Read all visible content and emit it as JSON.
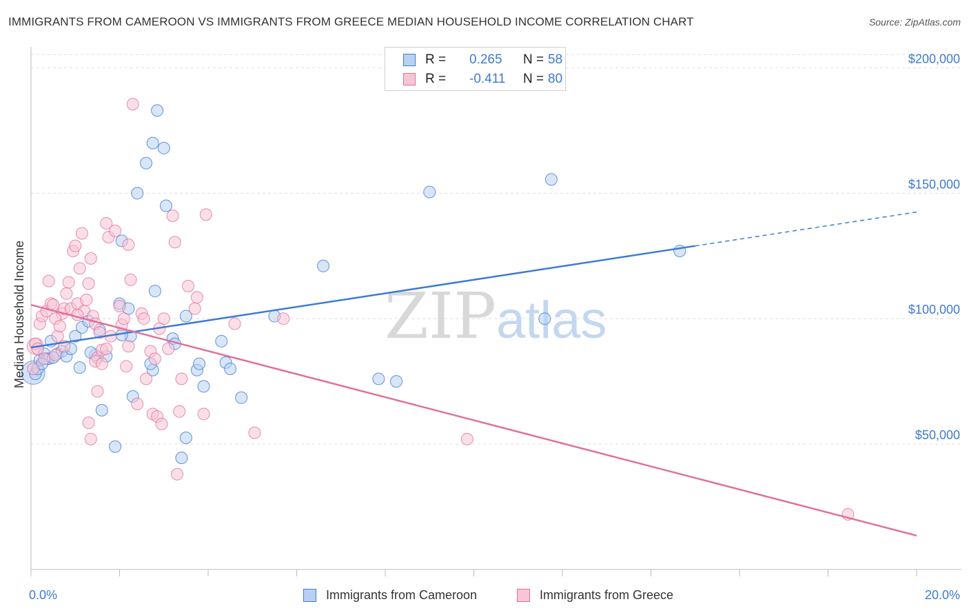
{
  "title": "IMMIGRANTS FROM CAMEROON VS IMMIGRANTS FROM GREECE MEDIAN HOUSEHOLD INCOME CORRELATION CHART",
  "source": "Source: ZipAtlas.com",
  "watermark": {
    "zip": "ZIP",
    "atlas": "atlas"
  },
  "legend": {
    "series1": {
      "r_label": "R =",
      "r_value": "0.265",
      "n_label": "N =",
      "n_value": "58"
    },
    "series2": {
      "r_label": "R =",
      "r_value": "-0.411",
      "n_label": "N =",
      "n_value": "80"
    }
  },
  "colors": {
    "cameroon": "#3d7bd1",
    "cameroon_fill": "#b8d1f3",
    "greece": "#e0709a",
    "greece_fill": "#f7c5d5",
    "tick_label": "#3d7bd1",
    "grid": "#dddddd"
  },
  "chart_data": {
    "type": "scatter",
    "title": "IMMIGRANTS FROM CAMEROON VS IMMIGRANTS FROM GREECE MEDIAN HOUSEHOLD INCOME CORRELATION CHART",
    "xlabel": "",
    "ylabel": "Median Household Income",
    "xlim": [
      0,
      20
    ],
    "ylim": [
      0,
      210000
    ],
    "x_tick_labels": [
      "0.0%",
      "20.0%"
    ],
    "y_ticks": [
      50000,
      100000,
      150000,
      200000
    ],
    "y_tick_labels": [
      "$50,000",
      "$100,000",
      "$150,000",
      "$200,000"
    ],
    "grid": true,
    "legend_position": "top-center",
    "series": [
      {
        "name": "Immigrants from Cameroon",
        "color": "#3d7bd1",
        "trend": {
          "x": [
            0,
            15
          ],
          "y": [
            88500,
            129000
          ],
          "dashed_to": [
            20,
            142500
          ]
        },
        "points": [
          [
            0.1,
            78000
          ],
          [
            0.15,
            80000
          ],
          [
            0.2,
            83500
          ],
          [
            0.3,
            86000
          ],
          [
            0.35,
            84000
          ],
          [
            0.4,
            84000
          ],
          [
            0.45,
            91000
          ],
          [
            0.6,
            86000
          ],
          [
            0.7,
            87000
          ],
          [
            0.8,
            85000
          ],
          [
            0.9,
            88000
          ],
          [
            1.1,
            80500
          ],
          [
            1.0,
            93000
          ],
          [
            1.15,
            96500
          ],
          [
            1.3,
            99000
          ],
          [
            1.45,
            85500
          ],
          [
            1.55,
            95500
          ],
          [
            1.7,
            85000
          ],
          [
            1.6,
            63500
          ],
          [
            1.9,
            49000
          ],
          [
            2.0,
            106000
          ],
          [
            2.2,
            104000
          ],
          [
            2.25,
            93000
          ],
          [
            2.05,
            93500
          ],
          [
            2.05,
            131000
          ],
          [
            2.3,
            69000
          ],
          [
            2.4,
            150000
          ],
          [
            2.6,
            162000
          ],
          [
            2.75,
            170000
          ],
          [
            2.8,
            111000
          ],
          [
            2.75,
            79500
          ],
          [
            2.85,
            183000
          ],
          [
            3.0,
            168000
          ],
          [
            3.05,
            145000
          ],
          [
            3.2,
            92000
          ],
          [
            3.25,
            90000
          ],
          [
            3.5,
            101000
          ],
          [
            3.5,
            52500
          ],
          [
            3.4,
            44500
          ],
          [
            3.75,
            79500
          ],
          [
            3.8,
            82000
          ],
          [
            3.9,
            73000
          ],
          [
            4.3,
            91000
          ],
          [
            4.4,
            82500
          ],
          [
            4.5,
            80000
          ],
          [
            4.75,
            68500
          ],
          [
            5.5,
            101000
          ],
          [
            6.6,
            121000
          ],
          [
            7.85,
            76000
          ],
          [
            8.25,
            75000
          ],
          [
            9.0,
            150500
          ],
          [
            11.6,
            100000
          ],
          [
            11.75,
            155500
          ],
          [
            14.65,
            127000
          ],
          [
            0.25,
            82000
          ],
          [
            0.5,
            84500
          ],
          [
            1.35,
            86500
          ],
          [
            2.7,
            82000
          ]
        ]
      },
      {
        "name": "Immigrants from Greece",
        "color": "#e0709a",
        "trend": {
          "x": [
            0,
            20
          ],
          "y": [
            105500,
            13500
          ]
        },
        "points": [
          [
            0.05,
            80000
          ],
          [
            0.1,
            90000
          ],
          [
            0.15,
            88000
          ],
          [
            0.2,
            98000
          ],
          [
            0.25,
            101000
          ],
          [
            0.3,
            84000
          ],
          [
            0.35,
            103000
          ],
          [
            0.4,
            115000
          ],
          [
            0.45,
            106000
          ],
          [
            0.5,
            105500
          ],
          [
            0.55,
            85500
          ],
          [
            0.6,
            93000
          ],
          [
            0.7,
            102000
          ],
          [
            0.75,
            104000
          ],
          [
            0.8,
            110000
          ],
          [
            0.85,
            114500
          ],
          [
            0.9,
            104000
          ],
          [
            0.95,
            127000
          ],
          [
            1.0,
            129000
          ],
          [
            1.05,
            106000
          ],
          [
            1.1,
            120000
          ],
          [
            1.2,
            103000
          ],
          [
            1.25,
            107500
          ],
          [
            1.3,
            114000
          ],
          [
            1.35,
            124000
          ],
          [
            1.4,
            101000
          ],
          [
            1.45,
            98000
          ],
          [
            1.5,
            84500
          ],
          [
            1.55,
            94500
          ],
          [
            1.6,
            87500
          ],
          [
            1.7,
            88000
          ],
          [
            1.15,
            134000
          ],
          [
            1.3,
            58500
          ],
          [
            1.35,
            52000
          ],
          [
            1.45,
            83000
          ],
          [
            1.5,
            71000
          ],
          [
            1.7,
            138000
          ],
          [
            1.75,
            132500
          ],
          [
            1.9,
            135000
          ],
          [
            2.0,
            105000
          ],
          [
            2.05,
            97500
          ],
          [
            2.1,
            100000
          ],
          [
            2.15,
            81000
          ],
          [
            2.2,
            89000
          ],
          [
            2.2,
            129500
          ],
          [
            2.3,
            185500
          ],
          [
            2.4,
            66000
          ],
          [
            2.5,
            102000
          ],
          [
            2.55,
            100000
          ],
          [
            2.6,
            76000
          ],
          [
            2.7,
            87000
          ],
          [
            2.75,
            62000
          ],
          [
            2.8,
            84000
          ],
          [
            2.85,
            61000
          ],
          [
            2.95,
            58000
          ],
          [
            3.0,
            100000
          ],
          [
            3.1,
            88000
          ],
          [
            3.2,
            141000
          ],
          [
            3.25,
            130500
          ],
          [
            3.3,
            38000
          ],
          [
            3.35,
            63000
          ],
          [
            3.4,
            76000
          ],
          [
            3.55,
            113000
          ],
          [
            3.7,
            104000
          ],
          [
            3.75,
            108500
          ],
          [
            3.9,
            62000
          ],
          [
            3.95,
            141500
          ],
          [
            4.6,
            98000
          ],
          [
            5.05,
            54500
          ],
          [
            5.7,
            100000
          ],
          [
            9.85,
            52000
          ],
          [
            18.45,
            22000
          ],
          [
            0.55,
            100000
          ],
          [
            0.65,
            97000
          ],
          [
            0.75,
            89000
          ],
          [
            1.05,
            101500
          ],
          [
            1.6,
            82000
          ],
          [
            1.8,
            93000
          ],
          [
            2.25,
            115500
          ],
          [
            2.9,
            96000
          ]
        ]
      }
    ]
  },
  "bottom_legend": {
    "item1": "Immigrants from Cameroon",
    "item2": "Immigrants from Greece"
  }
}
